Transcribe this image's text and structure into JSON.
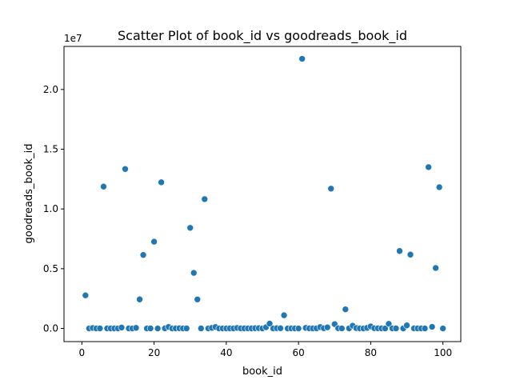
{
  "chart_data": {
    "type": "scatter",
    "title": "Scatter Plot of book_id vs goodreads_book_id",
    "xlabel": "book_id",
    "ylabel": "goodreads_book_id",
    "y_offset_label": "1e7",
    "xlim": [
      -4.95,
      104.95
    ],
    "ylim": [
      -1100000,
      23600000
    ],
    "x_ticks": [
      0,
      20,
      40,
      60,
      80,
      100
    ],
    "x_tick_labels": [
      "0",
      "20",
      "40",
      "60",
      "80",
      "100"
    ],
    "y_ticks": [
      0,
      5000000,
      10000000,
      15000000,
      20000000
    ],
    "y_tick_labels": [
      "0.0",
      "0.5",
      "1.0",
      "1.5",
      "2.0"
    ],
    "marker_color": "#1f77b4",
    "grid": false,
    "x": [
      1,
      2,
      3,
      4,
      5,
      6,
      7,
      8,
      9,
      10,
      11,
      12,
      13,
      14,
      15,
      16,
      17,
      18,
      19,
      20,
      21,
      22,
      23,
      24,
      25,
      26,
      27,
      28,
      29,
      30,
      31,
      32,
      33,
      34,
      35,
      36,
      37,
      38,
      39,
      40,
      41,
      42,
      43,
      44,
      45,
      46,
      47,
      48,
      49,
      50,
      51,
      52,
      53,
      54,
      55,
      56,
      57,
      58,
      59,
      60,
      61,
      62,
      63,
      64,
      65,
      66,
      67,
      68,
      69,
      70,
      71,
      72,
      73,
      74,
      75,
      76,
      77,
      78,
      79,
      80,
      81,
      82,
      83,
      84,
      85,
      86,
      87,
      88,
      89,
      90,
      91,
      92,
      93,
      94,
      95,
      96,
      97,
      98,
      99,
      100
    ],
    "y": [
      2770000,
      3,
      41865,
      2657,
      5000,
      11870000,
      5107,
      960,
      4671,
      1885,
      77203,
      13340000,
      5470,
      890,
      48855,
      2430000,
      6150000,
      5,
      4214,
      7260000,
      2,
      12230000,
      15881,
      128000,
      6,
      7624,
      18135,
      2767,
      5297,
      8420000,
      4650000,
      2429135,
      7613,
      10820000,
      1934,
      49041,
      119073,
      2956,
      1618,
      11,
      4381,
      1420,
      43641,
      11588,
      3636,
      1934,
      5129,
      21787,
      23712,
      34,
      100000,
      408000,
      13,
      22628,
      17245,
      1100000,
      12,
      7445,
      2429,
      27,
      22560000,
      48855,
      7144,
      4934,
      10210,
      113436,
      18144,
      93000,
      11700000,
      361000,
      16299,
      1845,
      1600000,
      10917,
      229000,
      30119,
      11735,
      35,
      47281,
      170000,
      19063,
      14935,
      7126,
      6,
      386000,
      12067,
      6185,
      6480000,
      2165,
      256683,
      6180000,
      10534,
      8127,
      6186,
      30,
      13500000,
      136251,
      5060000,
      11820000,
      29
    ]
  }
}
